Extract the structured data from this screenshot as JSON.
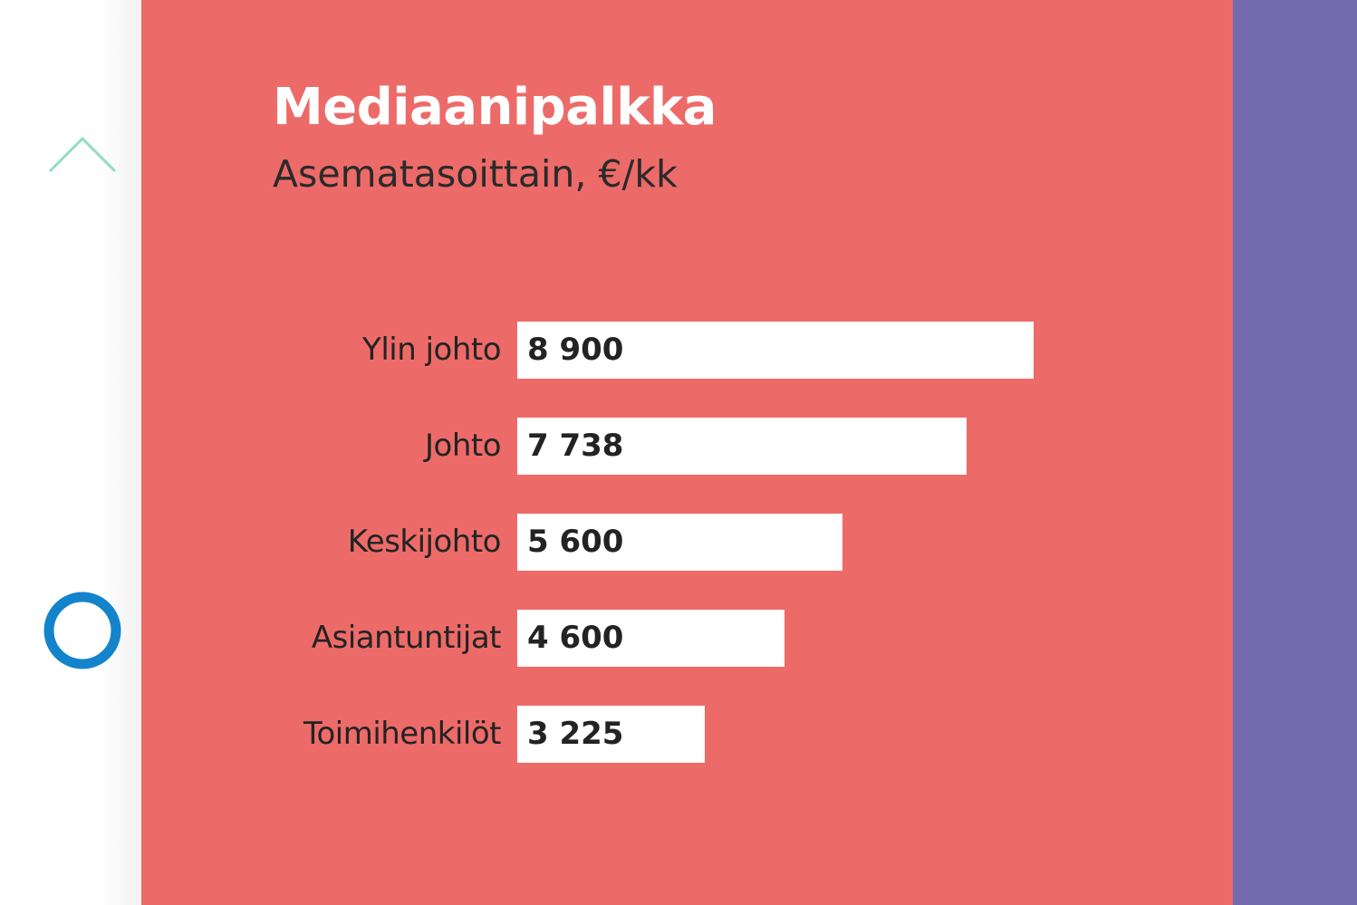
{
  "colors": {
    "panel_background": "#ec6b69",
    "right_strip": "#746aae",
    "bar_fill": "#ffffff",
    "arrow_stroke": "#8fdcc6",
    "circle_stroke": "#1384cc",
    "title_color": "#ffffff",
    "text_color": "#232323"
  },
  "navigation": {
    "up_icon": "chevron-up-icon",
    "circle_icon": "ring-icon"
  },
  "chart_data": {
    "type": "bar",
    "orientation": "horizontal",
    "title": "Mediaanipalkka",
    "subtitle": "Asematasoittain, €/kk",
    "xlabel": "",
    "ylabel": "",
    "categories": [
      "Ylin johto",
      "Johto",
      "Keskijohto",
      "Asiantuntijat",
      "Toimihenkilöt"
    ],
    "values": [
      8900,
      7738,
      5600,
      4600,
      3225
    ],
    "value_labels": [
      "8 900",
      "7 738",
      "5 600",
      "4 600",
      "3 225"
    ],
    "xlim": [
      0,
      8900
    ],
    "grid": false,
    "legend": "none"
  }
}
